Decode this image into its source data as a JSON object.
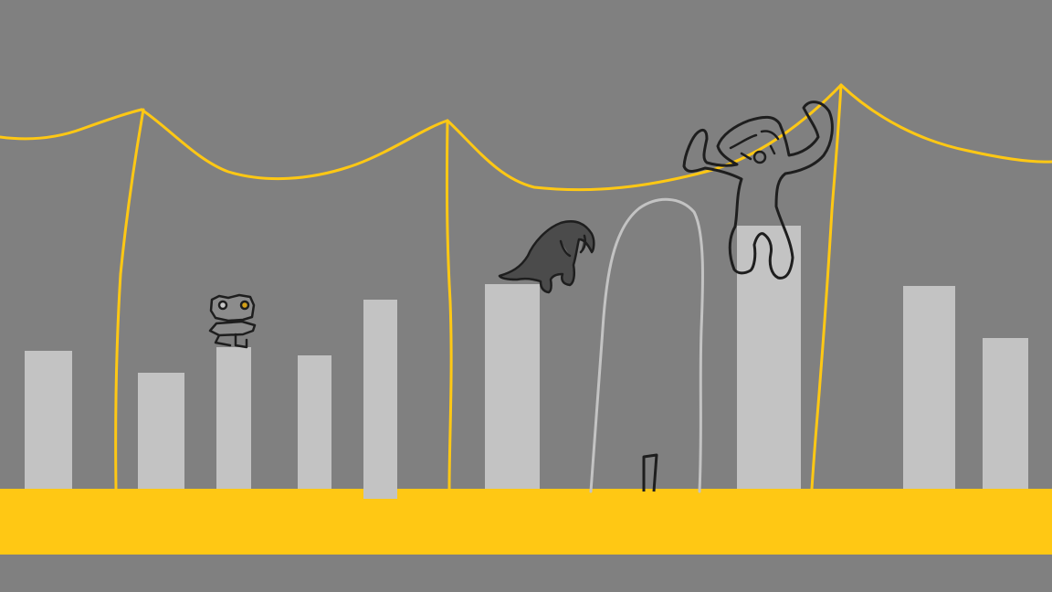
{
  "scene": {
    "background_color": "#808080",
    "ground_color": "#ffc814",
    "wire_color": "#ffc814",
    "pillar_color": "#c3c3c3",
    "arch_color": "#c3c3c3",
    "outline_color": "#1e1e1e",
    "monster_color": "#4b4b4b",
    "gem_color": "#d4a017"
  },
  "characters": [
    {
      "name": "player-robot",
      "icon": "robot-icon"
    },
    {
      "name": "monster-hunched",
      "icon": "creature-icon"
    },
    {
      "name": "monster-giant",
      "icon": "giant-icon"
    }
  ]
}
